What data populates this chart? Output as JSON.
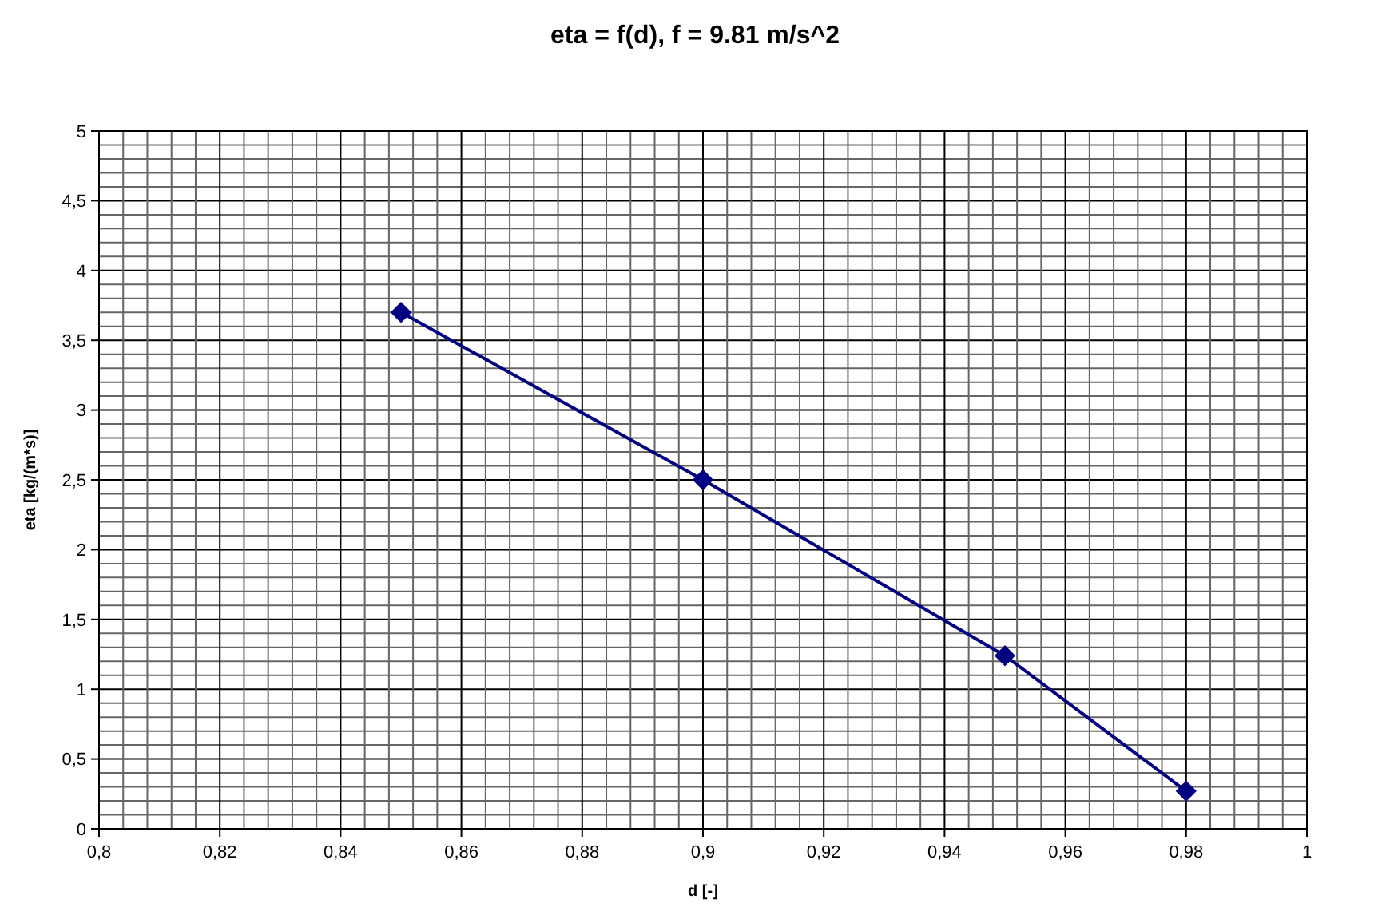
{
  "chart_data": {
    "type": "line",
    "title": "eta = f(d), f = 9.81 m/s^2",
    "xlabel": "d [-]",
    "ylabel": "eta [kg/(m*s)]",
    "x": [
      0.85,
      0.9,
      0.95,
      0.98
    ],
    "series": [
      {
        "color": "#000080",
        "values": [
          3.7,
          2.5,
          1.24,
          0.27
        ]
      }
    ],
    "marker": "diamond",
    "line_style": "solid",
    "grid": true,
    "xlim": [
      0.8,
      1
    ],
    "ylim": [
      0,
      5
    ],
    "xticks": [
      {
        "value": 0.8,
        "label": "0,8"
      },
      {
        "value": 0.804,
        "label": null
      },
      {
        "value": 0.808,
        "label": null
      },
      {
        "value": 0.812,
        "label": null
      },
      {
        "value": 0.816,
        "label": null
      },
      {
        "value": 0.82,
        "label": "0,82"
      },
      {
        "value": 0.824,
        "label": null
      },
      {
        "value": 0.828,
        "label": null
      },
      {
        "value": 0.832,
        "label": null
      },
      {
        "value": 0.836,
        "label": null
      },
      {
        "value": 0.84,
        "label": "0,84"
      },
      {
        "value": 0.844,
        "label": null
      },
      {
        "value": 0.848,
        "label": null
      },
      {
        "value": 0.852,
        "label": null
      },
      {
        "value": 0.856,
        "label": null
      },
      {
        "value": 0.86,
        "label": "0,86"
      },
      {
        "value": 0.864,
        "label": null
      },
      {
        "value": 0.868,
        "label": null
      },
      {
        "value": 0.872,
        "label": null
      },
      {
        "value": 0.876,
        "label": null
      },
      {
        "value": 0.88,
        "label": "0,88"
      },
      {
        "value": 0.884,
        "label": null
      },
      {
        "value": 0.888,
        "label": null
      },
      {
        "value": 0.892,
        "label": null
      },
      {
        "value": 0.896,
        "label": null
      },
      {
        "value": 0.9,
        "label": "0,9"
      },
      {
        "value": 0.904,
        "label": null
      },
      {
        "value": 0.908,
        "label": null
      },
      {
        "value": 0.912,
        "label": null
      },
      {
        "value": 0.916,
        "label": null
      },
      {
        "value": 0.92,
        "label": "0,92"
      },
      {
        "value": 0.924,
        "label": null
      },
      {
        "value": 0.928,
        "label": null
      },
      {
        "value": 0.932,
        "label": null
      },
      {
        "value": 0.936,
        "label": null
      },
      {
        "value": 0.94,
        "label": "0,94"
      },
      {
        "value": 0.944,
        "label": null
      },
      {
        "value": 0.948,
        "label": null
      },
      {
        "value": 0.952,
        "label": null
      },
      {
        "value": 0.956,
        "label": null
      },
      {
        "value": 0.96,
        "label": "0,96"
      },
      {
        "value": 0.964,
        "label": null
      },
      {
        "value": 0.968,
        "label": null
      },
      {
        "value": 0.972,
        "label": null
      },
      {
        "value": 0.976,
        "label": null
      },
      {
        "value": 0.98,
        "label": "0,98"
      },
      {
        "value": 0.984,
        "label": null
      },
      {
        "value": 0.988,
        "label": null
      },
      {
        "value": 0.992,
        "label": null
      },
      {
        "value": 0.996,
        "label": null
      },
      {
        "value": 1,
        "label": "1"
      }
    ],
    "yticks": [
      0,
      {
        "value": 0.1,
        "label": null
      },
      {
        "value": 0.2,
        "label": null
      },
      {
        "value": 0.3,
        "label": null
      },
      {
        "value": 0.4,
        "label": null
      },
      {
        "value": 0.5,
        "label": "0,5"
      },
      {
        "value": 0.6,
        "label": null
      },
      {
        "value": 0.7,
        "label": null
      },
      {
        "value": 0.8,
        "label": null
      },
      {
        "value": 0.9,
        "label": null
      },
      1,
      {
        "value": 1.1,
        "label": null
      },
      {
        "value": 1.2,
        "label": null
      },
      {
        "value": 1.3,
        "label": null
      },
      {
        "value": 1.4,
        "label": null
      },
      {
        "value": 1.5,
        "label": "1,5"
      },
      {
        "value": 1.6,
        "label": null
      },
      {
        "value": 1.7,
        "label": null
      },
      {
        "value": 1.8,
        "label": null
      },
      {
        "value": 1.9,
        "label": null
      },
      2,
      {
        "value": 2.1,
        "label": null
      },
      {
        "value": 2.2,
        "label": null
      },
      {
        "value": 2.3,
        "label": null
      },
      {
        "value": 2.4,
        "label": null
      },
      {
        "value": 2.5,
        "label": "2,5"
      },
      {
        "value": 2.6,
        "label": null
      },
      {
        "value": 2.7,
        "label": null
      },
      {
        "value": 2.8,
        "label": null
      },
      {
        "value": 2.9,
        "label": null
      },
      3,
      {
        "value": 3.1,
        "label": null
      },
      {
        "value": 3.2,
        "label": null
      },
      {
        "value": 3.3,
        "label": null
      },
      {
        "value": 3.4,
        "label": null
      },
      {
        "value": 3.5,
        "label": "3,5"
      },
      {
        "value": 3.6,
        "label": null
      },
      {
        "value": 3.7,
        "label": null
      },
      {
        "value": 3.8,
        "label": null
      },
      {
        "value": 3.9,
        "label": null
      },
      4,
      {
        "value": 4.1,
        "label": null
      },
      {
        "value": 4.2,
        "label": null
      },
      {
        "value": 4.3,
        "label": null
      },
      {
        "value": 4.4,
        "label": null
      },
      {
        "value": 4.5,
        "label": "4,5"
      },
      {
        "value": 4.6,
        "label": null
      },
      {
        "value": 4.7,
        "label": null
      },
      {
        "value": 4.8,
        "label": null
      },
      {
        "value": 4.9,
        "label": null
      },
      5
    ]
  }
}
